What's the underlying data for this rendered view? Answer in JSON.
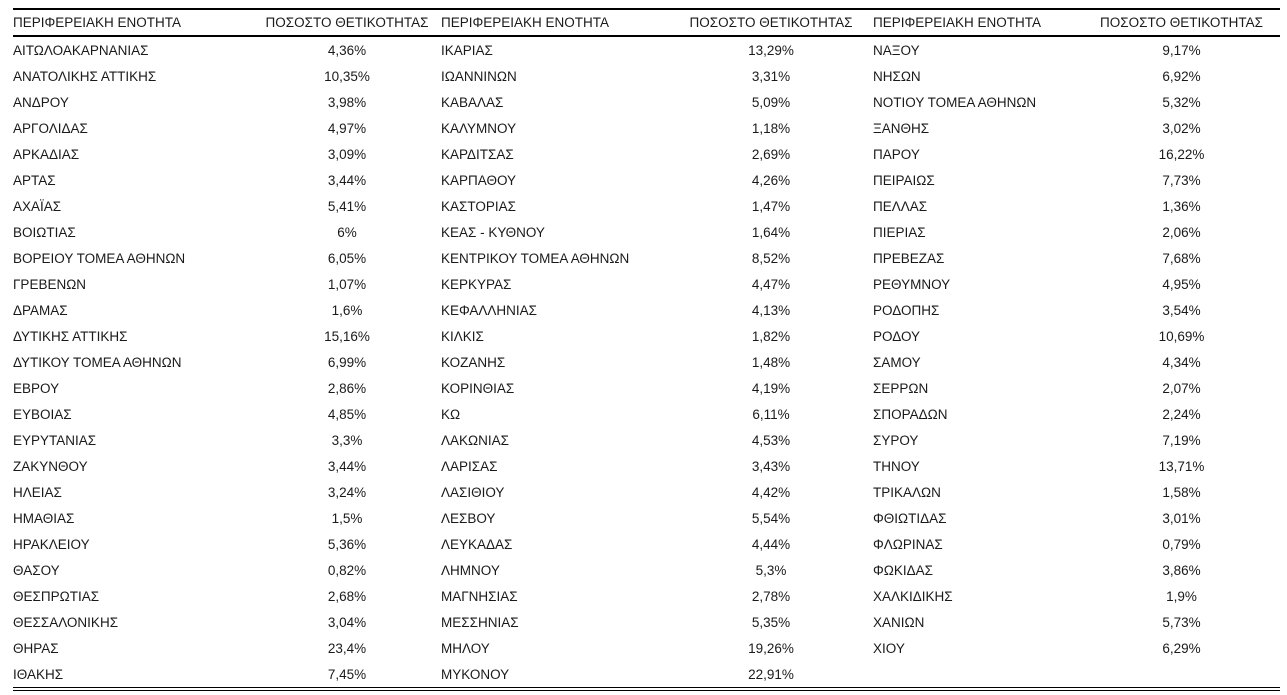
{
  "table": {
    "region_header": "ΠΕΡΙΦΕΡΕΙΑΚΗ ΕΝΟΤΗΤΑ",
    "positivity_header": "ΠΟΣΟΣΤΟ ΘΕΤΙΚΟΤΗΤΑΣ",
    "column_groups": [
      {
        "rows": [
          {
            "name": "ΑΙΤΩΛΟΑΚΑΡΝΑΝΙΑΣ",
            "value": "4,36%"
          },
          {
            "name": "ΑΝΑΤΟΛΙΚΗΣ ΑΤΤΙΚΗΣ",
            "value": "10,35%"
          },
          {
            "name": "ΑΝΔΡΟΥ",
            "value": "3,98%"
          },
          {
            "name": "ΑΡΓΟΛΙΔΑΣ",
            "value": "4,97%"
          },
          {
            "name": "ΑΡΚΑΔΙΑΣ",
            "value": "3,09%"
          },
          {
            "name": "ΑΡΤΑΣ",
            "value": "3,44%"
          },
          {
            "name": "ΑΧΑΪΑΣ",
            "value": "5,41%"
          },
          {
            "name": "ΒΟΙΩΤΙΑΣ",
            "value": "6%"
          },
          {
            "name": "ΒΟΡΕΙΟΥ ΤΟΜΕΑ ΑΘΗΝΩΝ",
            "value": "6,05%"
          },
          {
            "name": "ΓΡΕΒΕΝΩΝ",
            "value": "1,07%"
          },
          {
            "name": "ΔΡΑΜΑΣ",
            "value": "1,6%"
          },
          {
            "name": "ΔΥΤΙΚΗΣ ΑΤΤΙΚΗΣ",
            "value": "15,16%"
          },
          {
            "name": "ΔΥΤΙΚΟΥ ΤΟΜΕΑ ΑΘΗΝΩΝ",
            "value": "6,99%"
          },
          {
            "name": "ΕΒΡΟΥ",
            "value": "2,86%"
          },
          {
            "name": "ΕΥΒΟΙΑΣ",
            "value": "4,85%"
          },
          {
            "name": "ΕΥΡΥΤΑΝΙΑΣ",
            "value": "3,3%"
          },
          {
            "name": "ΖΑΚΥΝΘΟΥ",
            "value": "3,44%"
          },
          {
            "name": "ΗΛΕΙΑΣ",
            "value": "3,24%"
          },
          {
            "name": "ΗΜΑΘΙΑΣ",
            "value": "1,5%"
          },
          {
            "name": "ΗΡΑΚΛΕΙΟΥ",
            "value": "5,36%"
          },
          {
            "name": "ΘΑΣΟΥ",
            "value": "0,82%"
          },
          {
            "name": "ΘΕΣΠΡΩΤΙΑΣ",
            "value": "2,68%"
          },
          {
            "name": "ΘΕΣΣΑΛΟΝΙΚΗΣ",
            "value": "3,04%"
          },
          {
            "name": "ΘΗΡΑΣ",
            "value": "23,4%"
          },
          {
            "name": "ΙΘΑΚΗΣ",
            "value": "7,45%"
          }
        ]
      },
      {
        "rows": [
          {
            "name": "ΙΚΑΡΙΑΣ",
            "value": "13,29%"
          },
          {
            "name": "ΙΩΑΝΝΙΝΩΝ",
            "value": "3,31%"
          },
          {
            "name": "ΚΑΒΑΛΑΣ",
            "value": "5,09%"
          },
          {
            "name": "ΚΑΛΥΜΝΟΥ",
            "value": "1,18%"
          },
          {
            "name": "ΚΑΡΔΙΤΣΑΣ",
            "value": "2,69%"
          },
          {
            "name": "ΚΑΡΠΑΘΟΥ",
            "value": "4,26%"
          },
          {
            "name": "ΚΑΣΤΟΡΙΑΣ",
            "value": "1,47%"
          },
          {
            "name": "ΚΕΑΣ - ΚΥΘΝΟΥ",
            "value": "1,64%"
          },
          {
            "name": "ΚΕΝΤΡΙΚΟΥ ΤΟΜΕΑ ΑΘΗΝΩΝ",
            "value": "8,52%"
          },
          {
            "name": "ΚΕΡΚΥΡΑΣ",
            "value": "4,47%"
          },
          {
            "name": "ΚΕΦΑΛΛΗΝΙΑΣ",
            "value": "4,13%"
          },
          {
            "name": "ΚΙΛΚΙΣ",
            "value": "1,82%"
          },
          {
            "name": "ΚΟΖΑΝΗΣ",
            "value": "1,48%"
          },
          {
            "name": "ΚΟΡΙΝΘΙΑΣ",
            "value": "4,19%"
          },
          {
            "name": "ΚΩ",
            "value": "6,11%"
          },
          {
            "name": "ΛΑΚΩΝΙΑΣ",
            "value": "4,53%"
          },
          {
            "name": "ΛΑΡΙΣΑΣ",
            "value": "3,43%"
          },
          {
            "name": "ΛΑΣΙΘΙΟΥ",
            "value": "4,42%"
          },
          {
            "name": "ΛΕΣΒΟΥ",
            "value": "5,54%"
          },
          {
            "name": "ΛΕΥΚΑΔΑΣ",
            "value": "4,44%"
          },
          {
            "name": "ΛΗΜΝΟΥ",
            "value": "5,3%"
          },
          {
            "name": "ΜΑΓΝΗΣΙΑΣ",
            "value": "2,78%"
          },
          {
            "name": "ΜΕΣΣΗΝΙΑΣ",
            "value": "5,35%"
          },
          {
            "name": "ΜΗΛΟΥ",
            "value": "19,26%"
          },
          {
            "name": "ΜΥΚΟΝΟΥ",
            "value": "22,91%"
          }
        ]
      },
      {
        "rows": [
          {
            "name": "ΝΑΞΟΥ",
            "value": "9,17%"
          },
          {
            "name": "ΝΗΣΩΝ",
            "value": "6,92%"
          },
          {
            "name": "ΝΟΤΙΟΥ ΤΟΜΕΑ ΑΘΗΝΩΝ",
            "value": "5,32%"
          },
          {
            "name": "ΞΑΝΘΗΣ",
            "value": "3,02%"
          },
          {
            "name": "ΠΑΡΟΥ",
            "value": "16,22%"
          },
          {
            "name": "ΠΕΙΡΑΙΩΣ",
            "value": "7,73%"
          },
          {
            "name": "ΠΕΛΛΑΣ",
            "value": "1,36%"
          },
          {
            "name": "ΠΙΕΡΙΑΣ",
            "value": "2,06%"
          },
          {
            "name": "ΠΡΕΒΕΖΑΣ",
            "value": "7,68%"
          },
          {
            "name": "ΡΕΘΥΜΝΟΥ",
            "value": "4,95%"
          },
          {
            "name": "ΡΟΔΟΠΗΣ",
            "value": "3,54%"
          },
          {
            "name": "ΡΟΔΟΥ",
            "value": "10,69%"
          },
          {
            "name": "ΣΑΜΟΥ",
            "value": "4,34%"
          },
          {
            "name": "ΣΕΡΡΩΝ",
            "value": "2,07%"
          },
          {
            "name": "ΣΠΟΡΑΔΩΝ",
            "value": "2,24%"
          },
          {
            "name": "ΣΥΡΟΥ",
            "value": "7,19%"
          },
          {
            "name": "ΤΗΝΟΥ",
            "value": "13,71%"
          },
          {
            "name": "ΤΡΙΚΑΛΩΝ",
            "value": "1,58%"
          },
          {
            "name": "ΦΘΙΩΤΙΔΑΣ",
            "value": "3,01%"
          },
          {
            "name": "ΦΛΩΡΙΝΑΣ",
            "value": "0,79%"
          },
          {
            "name": "ΦΩΚΙΔΑΣ",
            "value": "3,86%"
          },
          {
            "name": "ΧΑΛΚΙΔΙΚΗΣ",
            "value": "1,9%"
          },
          {
            "name": "ΧΑΝΙΩΝ",
            "value": "5,73%"
          },
          {
            "name": "ΧΙΟΥ",
            "value": "6,29%"
          }
        ]
      }
    ]
  }
}
